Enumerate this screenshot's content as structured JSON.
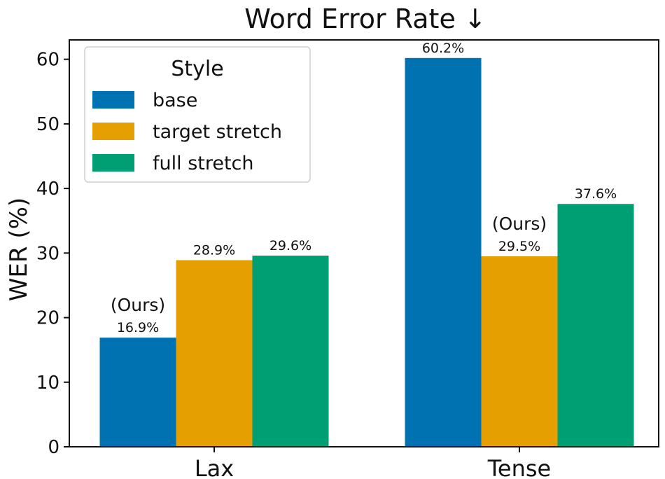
{
  "chart_data": {
    "type": "bar",
    "title": "Word Error Rate ↓",
    "xlabel": "",
    "ylabel": "WER (%)",
    "ylim": [
      0,
      63
    ],
    "yticks": [
      0,
      10,
      20,
      30,
      40,
      50,
      60
    ],
    "categories": [
      "Lax",
      "Tense"
    ],
    "series": [
      {
        "name": "base",
        "values": [
          16.9,
          60.2
        ],
        "labels": [
          "16.9%",
          "60.2%"
        ],
        "color": "#0072b2"
      },
      {
        "name": "target stretch",
        "values": [
          28.9,
          29.5
        ],
        "labels": [
          "28.9%",
          "29.5%"
        ],
        "color": "#e69f00"
      },
      {
        "name": "full stretch",
        "values": [
          29.6,
          37.6
        ],
        "labels": [
          "29.6%",
          "37.6%"
        ],
        "color": "#009e73"
      }
    ],
    "annotations": [
      {
        "text": "(Ours)",
        "category": "Lax",
        "series": "base"
      },
      {
        "text": "(Ours)",
        "category": "Tense",
        "series": "target stretch"
      }
    ],
    "legend": {
      "title": "Style",
      "position": "top-left"
    },
    "grid": false
  }
}
